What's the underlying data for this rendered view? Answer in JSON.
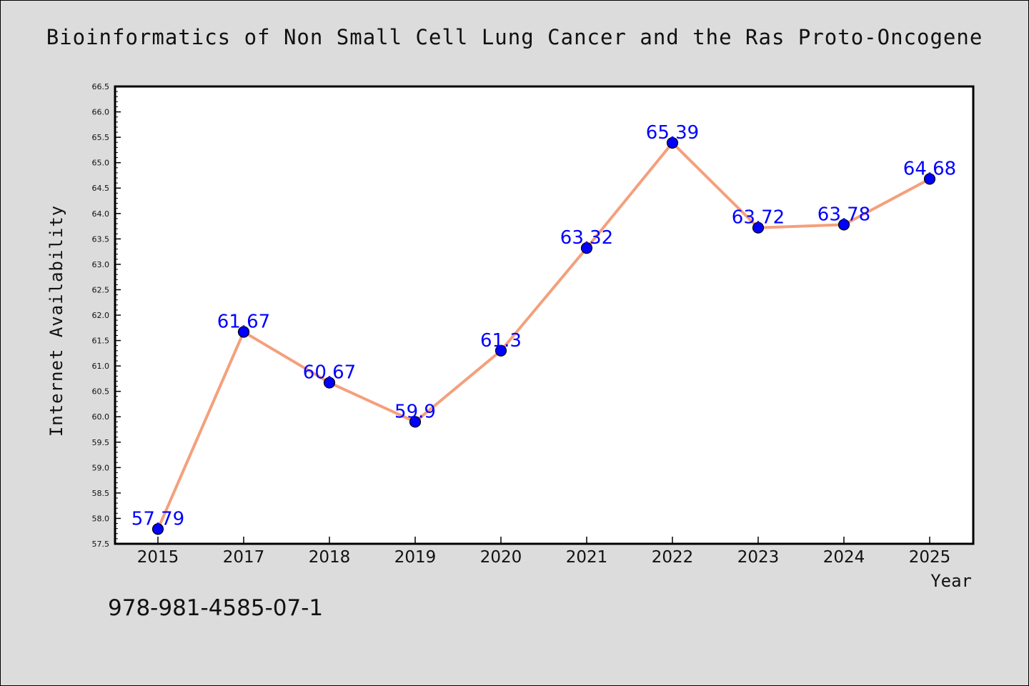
{
  "chart_data": {
    "type": "line",
    "title": "Bioinformatics of Non Small Cell Lung Cancer and the Ras Proto-Oncogene",
    "xlabel": "Year",
    "ylabel": "Internet Availability",
    "categories": [
      "2015",
      "2017",
      "2018",
      "2019",
      "2020",
      "2021",
      "2022",
      "2023",
      "2024",
      "2025"
    ],
    "values": [
      57.79,
      61.67,
      60.67,
      59.9,
      61.3,
      63.32,
      65.39,
      63.72,
      63.78,
      64.68
    ],
    "data_labels": [
      "57.79",
      "61.67",
      "60.67",
      "59.9",
      "61.3",
      "63.32",
      "65.39",
      "63.72",
      "63.78",
      "64.68"
    ],
    "ylim": [
      57.5,
      66.5
    ],
    "yticks": [
      "57.5",
      "58.0",
      "58.5",
      "59.0",
      "59.5",
      "60.0",
      "60.5",
      "61.0",
      "61.5",
      "62.0",
      "62.5",
      "63.0",
      "63.5",
      "64.0",
      "64.5",
      "65.0",
      "65.5",
      "66.0",
      "66.5"
    ],
    "grid": false,
    "colors": {
      "line": "#f4a07c",
      "marker": "#0000ff",
      "label": "#0000ff",
      "plot_background": "#ffffff",
      "page_background": "#dcdcdc"
    }
  },
  "footer": {
    "code": "978-981-4585-07-1"
  }
}
